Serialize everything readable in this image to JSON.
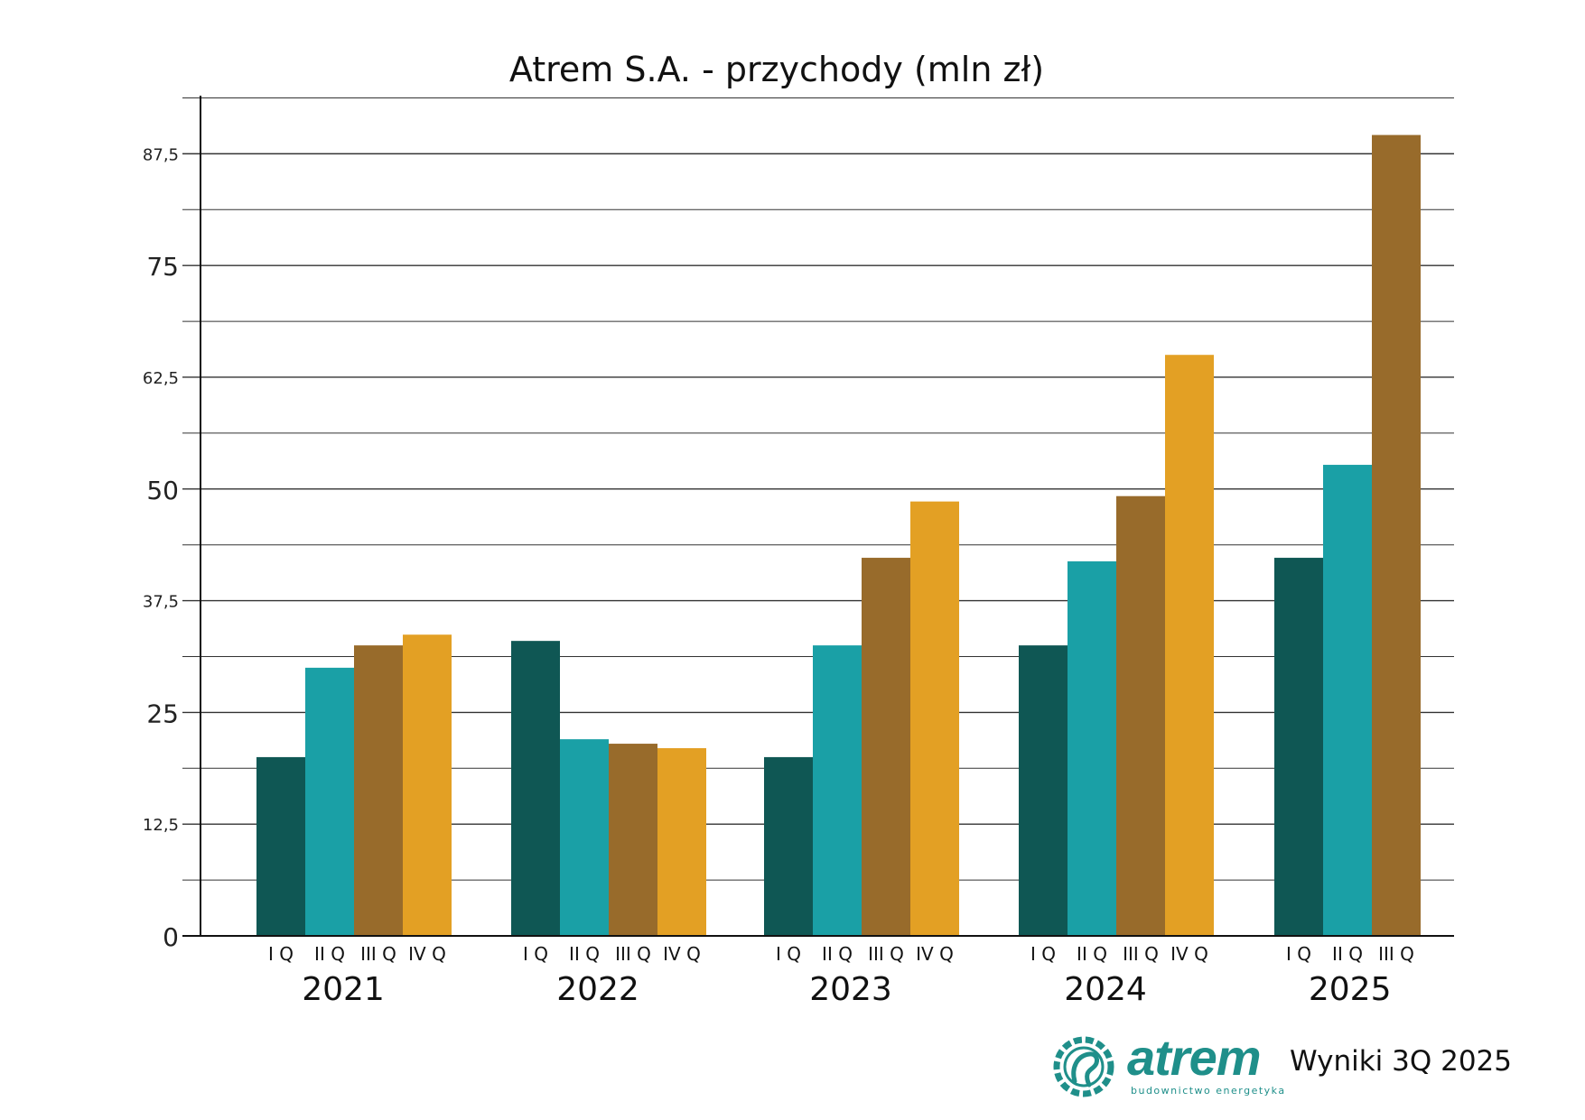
{
  "chart_data": {
    "type": "bar",
    "title": "Atrem S.A. - przychody (mln zł)",
    "xlabel": "",
    "ylabel": "",
    "ylim": [
      0,
      94
    ],
    "yticks": [
      0,
      12.5,
      25,
      37.5,
      50,
      62.5,
      75,
      87.5
    ],
    "ytick_labels": [
      "0",
      "12,5",
      "25",
      "37,5",
      "50",
      "62,5",
      "75",
      "87,5"
    ],
    "grid": true,
    "legend": "none",
    "groups": [
      {
        "year": "2021",
        "quarters": [
          {
            "q": "I Q",
            "value": 20.0
          },
          {
            "q": "II Q",
            "value": 30.0
          },
          {
            "q": "III Q",
            "value": 32.5
          },
          {
            "q": "IV Q",
            "value": 33.7
          }
        ]
      },
      {
        "year": "2022",
        "quarters": [
          {
            "q": "I Q",
            "value": 33.0
          },
          {
            "q": "II Q",
            "value": 22.0
          },
          {
            "q": "III Q",
            "value": 21.5
          },
          {
            "q": "IV Q",
            "value": 21.0
          }
        ]
      },
      {
        "year": "2023",
        "quarters": [
          {
            "q": "I Q",
            "value": 20.0
          },
          {
            "q": "II Q",
            "value": 32.5
          },
          {
            "q": "III Q",
            "value": 42.3
          },
          {
            "q": "IV Q",
            "value": 48.6
          }
        ]
      },
      {
        "year": "2024",
        "quarters": [
          {
            "q": "I Q",
            "value": 32.5
          },
          {
            "q": "II Q",
            "value": 41.9
          },
          {
            "q": "III Q",
            "value": 49.2
          },
          {
            "q": "IV Q",
            "value": 65.0
          }
        ]
      },
      {
        "year": "2025",
        "quarters": [
          {
            "q": "I Q",
            "value": 42.3
          },
          {
            "q": "II Q",
            "value": 52.7
          },
          {
            "q": "III Q",
            "value": 89.6
          }
        ]
      }
    ],
    "quarter_colors": {
      "I Q": "#0f5754",
      "II Q": "#1aa0a6",
      "III Q": "#986b2b",
      "IV Q": "#e3a024"
    }
  },
  "footer": {
    "logo_text": "atrem",
    "logo_subtitle": "budownictwo energetyka",
    "logo_icon": "atrem-emblem-icon",
    "report_label": "Wyniki 3Q 2025",
    "brand_color": "#1f8f8a"
  }
}
